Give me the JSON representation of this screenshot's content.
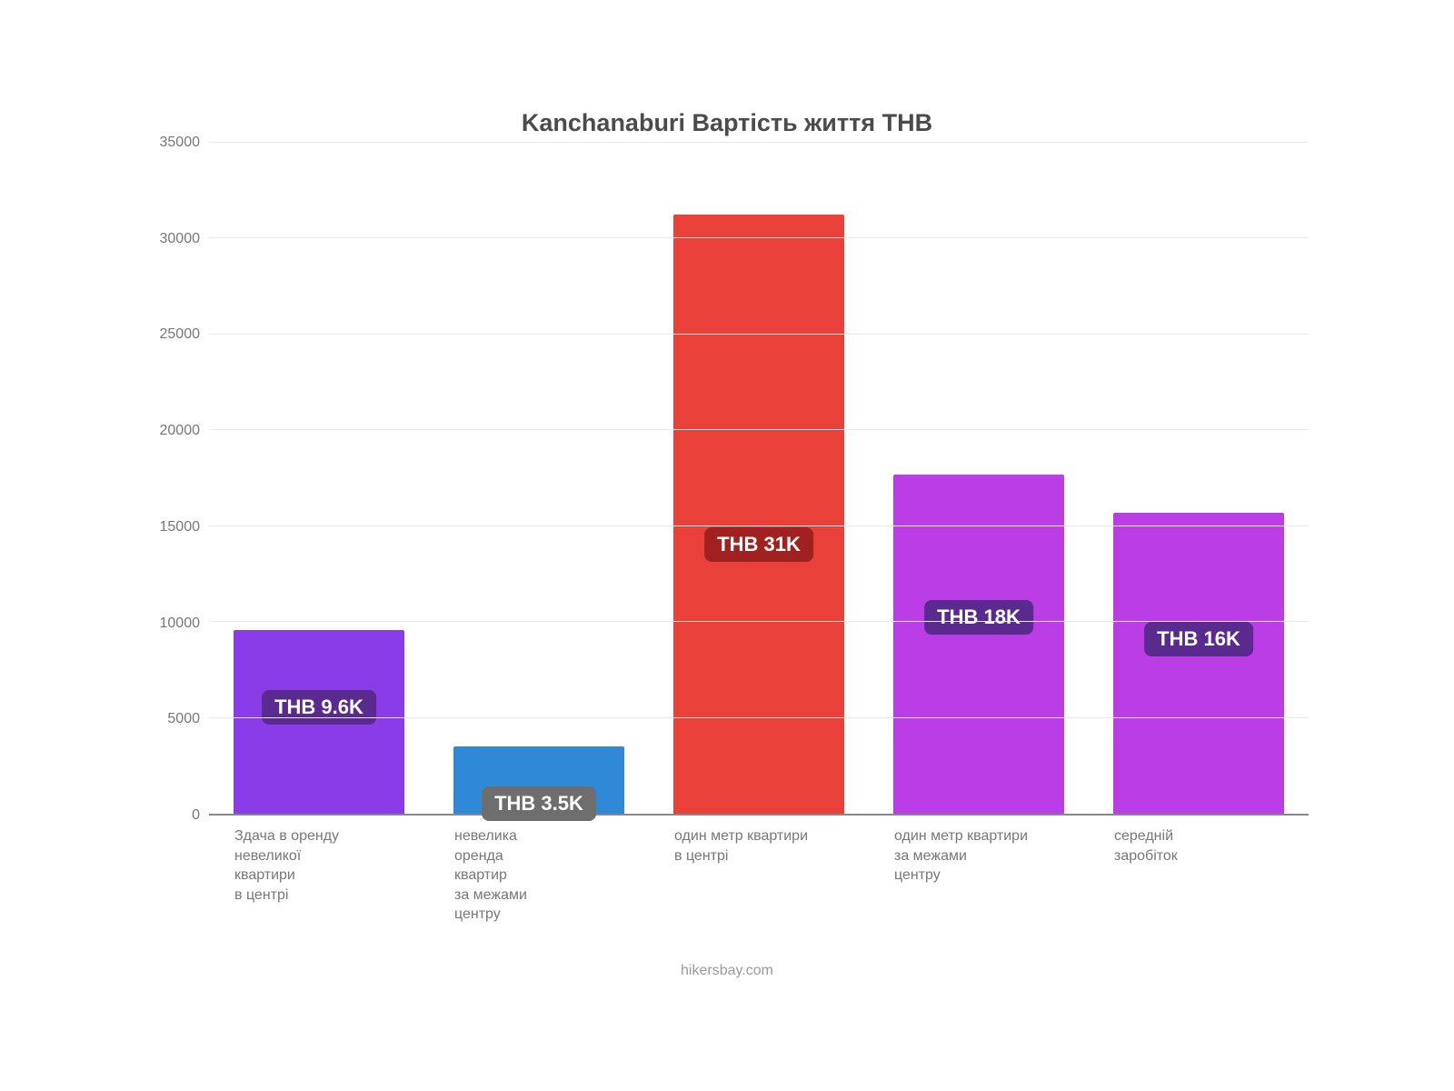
{
  "chart": {
    "type": "bar",
    "title": "Kanchanaburi Вартість життя THB",
    "title_fontsize": 27,
    "title_color": "#4b4b4b",
    "background_color": "#ffffff",
    "grid_color": "#e9e9e9",
    "axis_color": "#888888",
    "xlabel_color": "#777777",
    "ylabel_color": "#777777",
    "xlabel_fontsize": 16,
    "ylabel_fontsize": 16,
    "bar_label_fontsize": 22,
    "bar_width_pct": 78,
    "ylim": [
      0,
      35000
    ],
    "ytick_step": 5000,
    "yticks": [
      0,
      5000,
      10000,
      15000,
      20000,
      25000,
      30000,
      35000
    ],
    "bars": [
      {
        "label_lines": [
          "Здача в оренду",
          "невеликої",
          "квартири",
          "в центрі"
        ],
        "value": 9600,
        "color": "#8a3ce8",
        "value_display": "THB 9.6K",
        "badge_bg": "#5a2a8f",
        "badge_top_pct": 58
      },
      {
        "label_lines": [
          "невелика",
          "оренда",
          "квартир",
          "за межами",
          "центру"
        ],
        "value": 3500,
        "color": "#2f89d6",
        "value_display": "THB 3.5K",
        "badge_bg": "#6e6e6e",
        "badge_top_pct": 15
      },
      {
        "label_lines": [
          "один метр квартири",
          "в центрі"
        ],
        "value": 31250,
        "color": "#e9403a",
        "value_display": "THB 31K",
        "badge_bg": "#a12020",
        "badge_top_pct": 45
      },
      {
        "label_lines": [
          "один метр квартири",
          "за межами",
          "центру"
        ],
        "value": 17700,
        "color": "#bb3de6",
        "value_display": "THB 18K",
        "badge_bg": "#5a2a8f",
        "badge_top_pct": 58
      },
      {
        "label_lines": [
          "середній",
          "заробіток"
        ],
        "value": 15700,
        "color": "#bb3de6",
        "value_display": "THB 16K",
        "badge_bg": "#5a2a8f",
        "badge_top_pct": 58
      }
    ]
  },
  "attribution": "hikersbay.com",
  "attribution_fontsize": 16
}
